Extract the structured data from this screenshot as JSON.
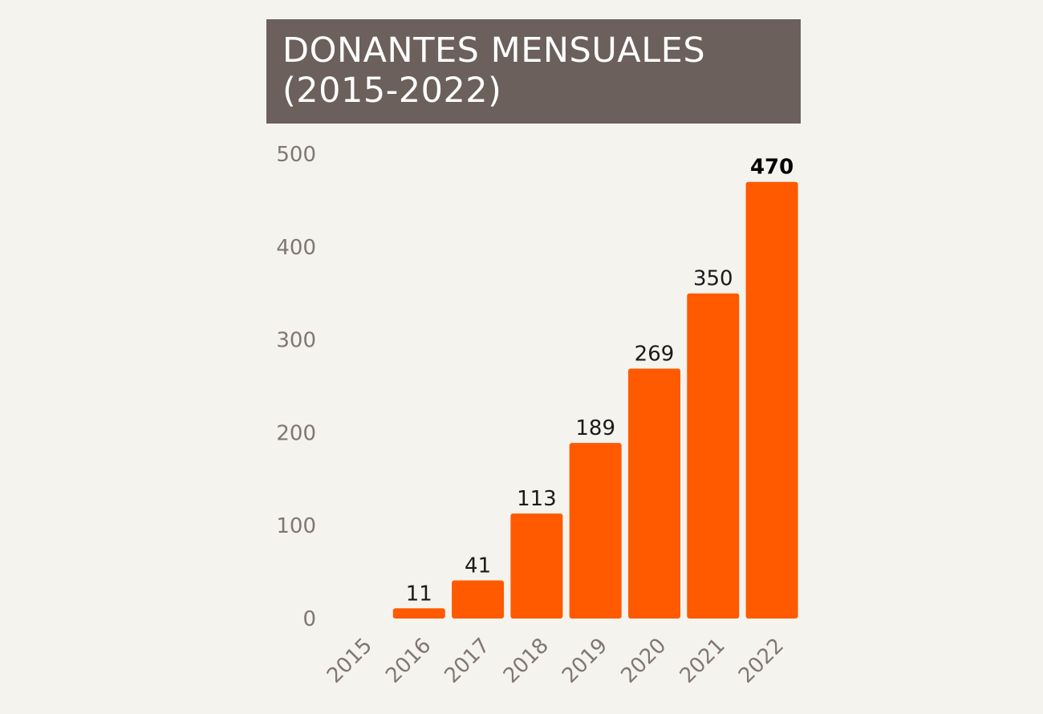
{
  "title": {
    "line1": "DONANTES MENSUALES",
    "line2": "(2015-2022)"
  },
  "chart_data": {
    "type": "bar",
    "categories": [
      "2015",
      "2016",
      "2017",
      "2018",
      "2019",
      "2020",
      "2021",
      "2022"
    ],
    "values": [
      0,
      11,
      41,
      113,
      189,
      269,
      350,
      470
    ],
    "data_labels": [
      "",
      "11",
      "41",
      "113",
      "189",
      "269",
      "350",
      "470"
    ],
    "highlight_label_index": 7,
    "ylim": [
      0,
      500
    ],
    "yticks": [
      0,
      100,
      200,
      300,
      400,
      500
    ],
    "grid": false,
    "legend": "none",
    "xlabel": "",
    "ylabel": "",
    "bar_color": "#ff5a00"
  }
}
